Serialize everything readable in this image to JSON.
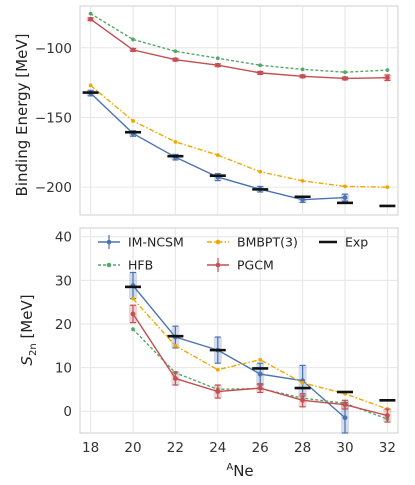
{
  "chart_data": [
    {
      "type": "line",
      "ylabel": "Binding Energy [MeV]",
      "ylim": [
        -220,
        -70
      ],
      "yticks": [
        "−100",
        "−150",
        "−200"
      ],
      "grid": true,
      "x": [
        18,
        20,
        22,
        24,
        26,
        28,
        30,
        32
      ],
      "series": [
        {
          "name": "IM-NCSM",
          "x": [
            18,
            20,
            22,
            24,
            26,
            28,
            30
          ],
          "values": [
            -132.5,
            -161.5,
            -178.5,
            -192.8,
            -201.5,
            -209.0,
            -207.5
          ],
          "err": [
            2,
            2,
            2,
            2.5,
            2,
            2,
            2.5
          ],
          "color": "#4c72b0"
        },
        {
          "name": "HFB",
          "x": [
            18,
            20,
            22,
            24,
            26,
            28,
            30,
            32
          ],
          "values": [
            -75.5,
            -94.0,
            -102.5,
            -107.5,
            -112.5,
            -115.5,
            -117.5,
            -116.0
          ],
          "color": "#55a868"
        },
        {
          "name": "BMBPT(3)",
          "x": [
            18,
            20,
            22,
            24,
            26,
            28,
            30,
            32
          ],
          "values": [
            -127.0,
            -152.5,
            -167.5,
            -177.0,
            -189.0,
            -195.5,
            -199.5,
            -200.0
          ],
          "color": "#f0a800"
        },
        {
          "name": "PGCM",
          "x": [
            18,
            20,
            22,
            24,
            26,
            28,
            30,
            32
          ],
          "values": [
            -79.5,
            -101.5,
            -108.5,
            -112.5,
            -118.0,
            -120.5,
            -122.0,
            -121.5
          ],
          "err": [
            1,
            1,
            1,
            1,
            1,
            1,
            1,
            2
          ],
          "color": "#c44e52"
        },
        {
          "name": "Exp",
          "x": [
            18,
            20,
            22,
            24,
            26,
            28,
            30,
            32
          ],
          "values": [
            -132.1,
            -160.6,
            -177.8,
            -191.8,
            -201.6,
            -206.9,
            -211.3,
            -213.5
          ],
          "color": "#111111"
        }
      ]
    },
    {
      "type": "line",
      "xlabel": "ANe",
      "xlabel_sup": "A",
      "xlabel_main": "Ne",
      "ylabel": "S2n [MeV]",
      "ylabel_main": "S",
      "ylabel_sub": "2n",
      "ylabel_unit": " [MeV]",
      "ylim": [
        -5,
        42
      ],
      "yticks": [
        "0",
        "10",
        "20",
        "30",
        "40"
      ],
      "xticks": [
        "18",
        "20",
        "22",
        "24",
        "26",
        "28",
        "30",
        "32"
      ],
      "grid": true,
      "legend": "top",
      "x": [
        20,
        22,
        24,
        26,
        28,
        30,
        32
      ],
      "series": [
        {
          "name": "IM-NCSM",
          "x": [
            20,
            22,
            24,
            26,
            28,
            30
          ],
          "values": [
            28.8,
            17.0,
            14.0,
            8.5,
            7.0,
            -1.5
          ],
          "err": [
            3,
            2.5,
            3,
            2.5,
            3.5,
            3.5
          ],
          "color": "#4c72b0"
        },
        {
          "name": "HFB",
          "x": [
            20,
            22,
            24,
            26,
            28,
            30,
            32
          ],
          "values": [
            18.8,
            8.8,
            5.0,
            5.2,
            3.0,
            1.8,
            -1.8
          ],
          "color": "#55a868"
        },
        {
          "name": "BMBPT(3)",
          "x": [
            20,
            22,
            24,
            26,
            28,
            30,
            32
          ],
          "values": [
            25.8,
            15.0,
            9.5,
            11.8,
            6.5,
            4.0,
            0.5
          ],
          "color": "#f0a800"
        },
        {
          "name": "PGCM",
          "x": [
            20,
            22,
            24,
            26,
            28,
            30,
            32
          ],
          "values": [
            22.3,
            7.5,
            4.5,
            5.3,
            2.5,
            1.5,
            -1.0
          ],
          "err": [
            2,
            1.5,
            1.5,
            1,
            1.5,
            1,
            1.5
          ],
          "color": "#c44e52"
        },
        {
          "name": "Exp",
          "x": [
            20,
            22,
            24,
            26,
            28,
            30,
            32
          ],
          "values": [
            28.5,
            17.2,
            14.0,
            9.8,
            5.3,
            4.4,
            2.5
          ],
          "color": "#111111"
        }
      ]
    }
  ]
}
